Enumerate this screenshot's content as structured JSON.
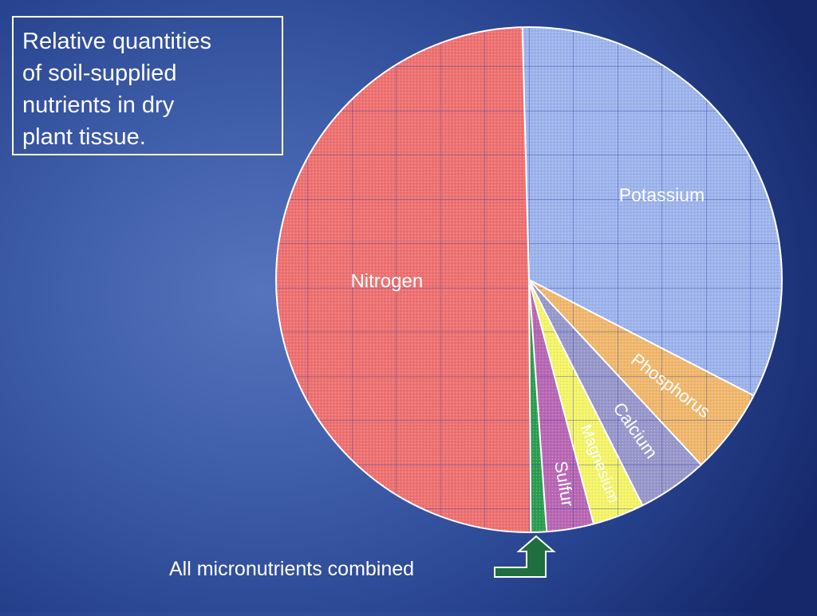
{
  "title_lines": [
    "Relative quantities",
    "of soil-supplied",
    "nutrients in dry",
    "plant tissue."
  ],
  "callout": "All micronutrients combined",
  "chart_data": {
    "type": "pie",
    "title": "Relative quantities of soil-supplied nutrients in dry plant tissue.",
    "slices": [
      {
        "label": "Potassium",
        "value": 33.0,
        "color": "#9eb4ec"
      },
      {
        "label": "Phosphorus",
        "value": 5.5,
        "color": "#f0b86e"
      },
      {
        "label": "Calcium",
        "value": 4.5,
        "color": "#9898cc"
      },
      {
        "label": "Magnesium",
        "value": 3.3,
        "color": "#f4f46a"
      },
      {
        "label": "Sulfur",
        "value": 3.0,
        "color": "#b968b4"
      },
      {
        "label": "",
        "value": 1.0,
        "color": "#2e9e52"
      },
      {
        "label": "Nitrogen",
        "value": 49.7,
        "color": "#ee7272"
      }
    ],
    "start_slice": "Potassium",
    "direction": "clockwise",
    "grid": true,
    "arrow_color": "#1e6e3e"
  }
}
